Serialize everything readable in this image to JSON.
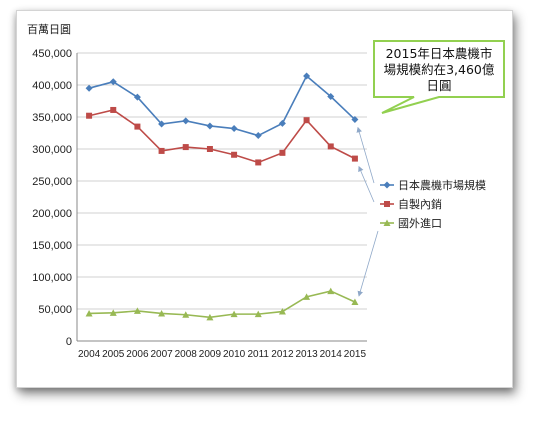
{
  "chart_data": {
    "type": "line",
    "unit_label": "百萬日圓",
    "x": [
      "2004",
      "2005",
      "2006",
      "2007",
      "2008",
      "2009",
      "2010",
      "2011",
      "2012",
      "2013",
      "2014",
      "2015"
    ],
    "ylim": [
      0,
      450000
    ],
    "yticks": [
      "0",
      "50,000",
      "100,000",
      "150,000",
      "200,000",
      "250,000",
      "300,000",
      "350,000",
      "400,000",
      "450,000"
    ],
    "series": [
      {
        "name": "日本農機市場規模",
        "color": "#4a7ebb",
        "marker": "diamond",
        "values": [
          395000,
          405000,
          381000,
          339000,
          344000,
          336000,
          332000,
          321000,
          340000,
          414000,
          382000,
          346000
        ]
      },
      {
        "name": "自製內銷",
        "color": "#be4b48",
        "marker": "square",
        "values": [
          352000,
          361000,
          335000,
          297000,
          303000,
          300000,
          291000,
          279000,
          294000,
          345000,
          304000,
          285000
        ]
      },
      {
        "name": "國外進口",
        "color": "#98b954",
        "marker": "triangle",
        "values": [
          43000,
          44000,
          47000,
          43000,
          41000,
          37000,
          42000,
          42000,
          46000,
          69000,
          78000,
          61000
        ]
      }
    ],
    "grid": "horizontal",
    "legend": "right",
    "annotation": {
      "lines": [
        "2015年日本農機市",
        "場規模約在3,460億",
        "日圓"
      ],
      "color": "#92d050"
    }
  }
}
